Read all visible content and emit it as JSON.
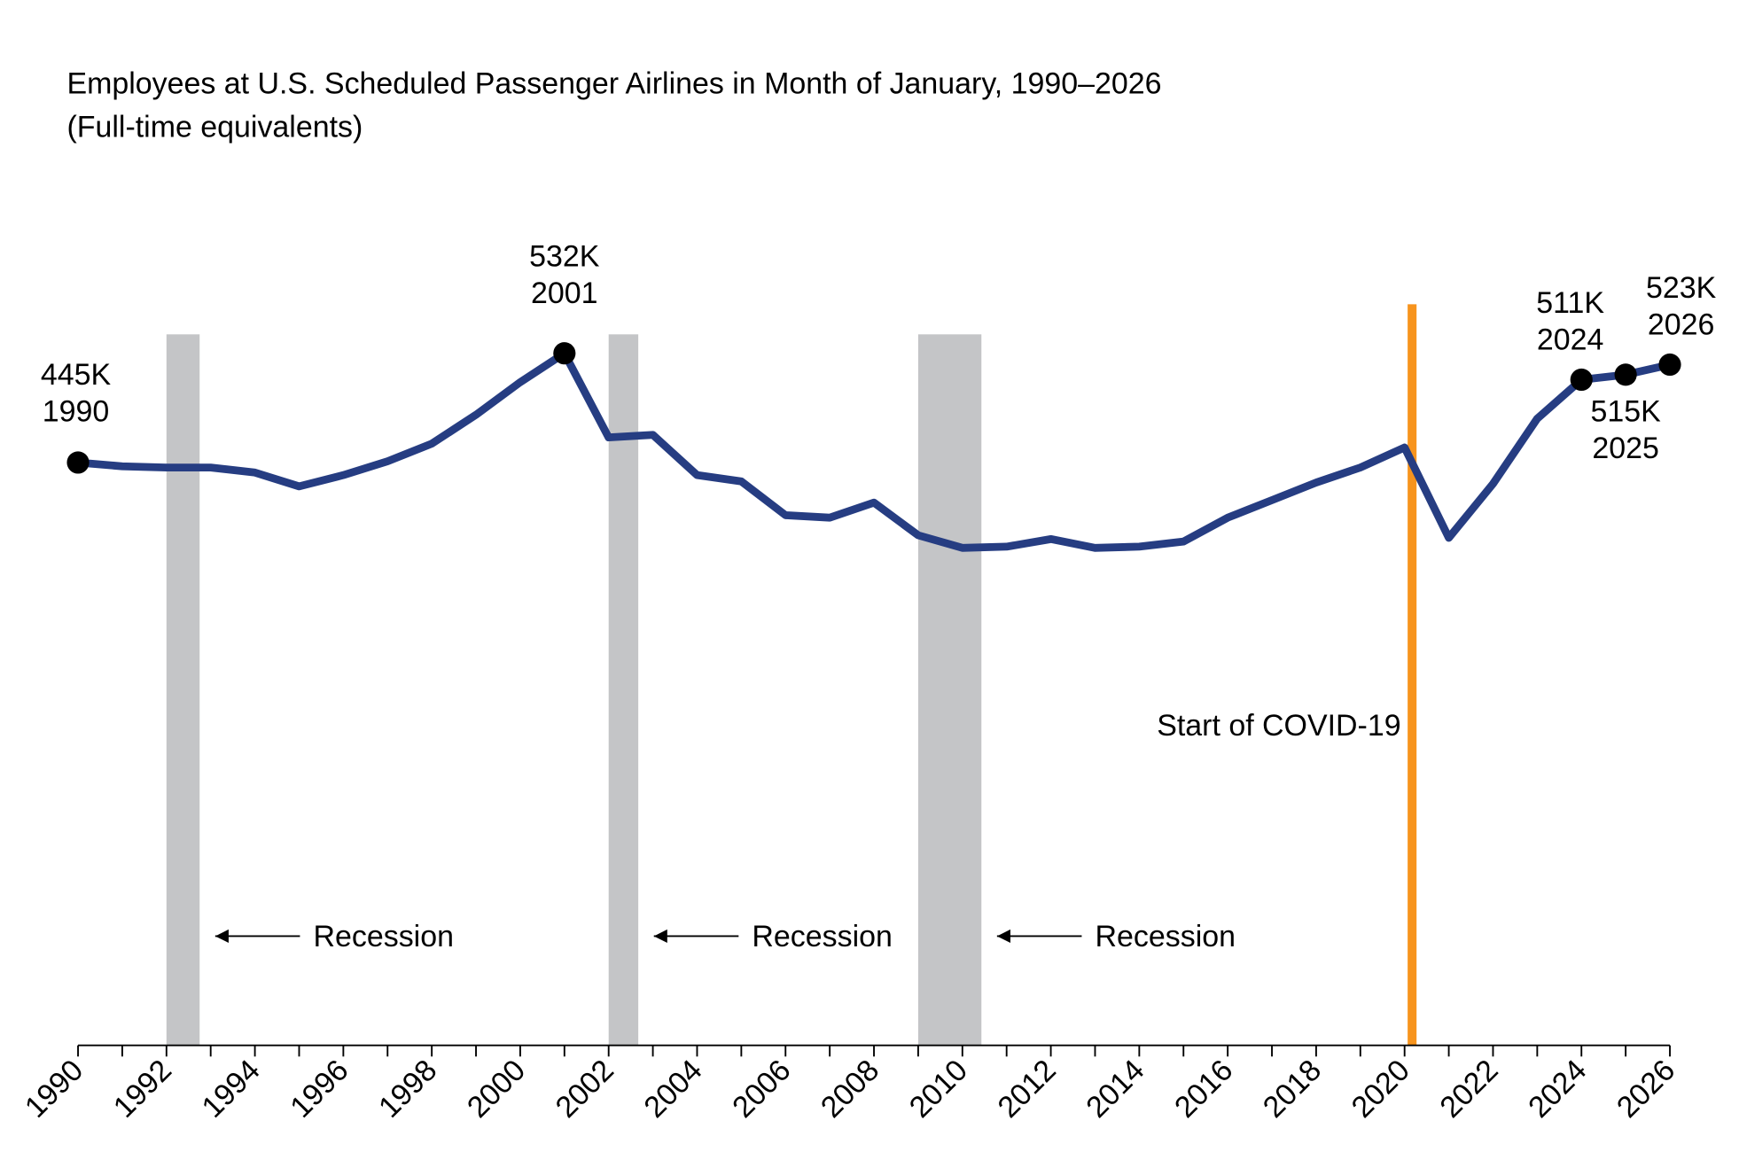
{
  "chart_data": {
    "type": "line",
    "title": "Employees at U.S. Scheduled Passenger Airlines in Month of January, 1990–2026",
    "subtitle": "(Full-time equivalents)",
    "xlabel": "",
    "ylabel": "",
    "xlim": [
      1990,
      2026
    ],
    "x_ticks": [
      "1990",
      "1992",
      "1994",
      "1996",
      "1998",
      "2000",
      "2002",
      "2004",
      "2006",
      "2008",
      "2010",
      "2012",
      "2014",
      "2016",
      "2018",
      "2020",
      "2022",
      "2024",
      "2026"
    ],
    "grid": false,
    "series_color": "#263d82",
    "x": [
      1990,
      1991,
      1992,
      1993,
      1994,
      1995,
      1996,
      1997,
      1998,
      1999,
      2000,
      2001,
      2002,
      2003,
      2004,
      2005,
      2006,
      2007,
      2008,
      2009,
      2010,
      2011,
      2012,
      2013,
      2014,
      2015,
      2016,
      2017,
      2018,
      2019,
      2020,
      2021,
      2022,
      2023,
      2024,
      2025,
      2026
    ],
    "values": [
      445,
      442,
      441,
      441,
      437,
      426,
      435,
      446,
      460,
      483,
      509,
      532,
      465,
      467,
      435,
      430,
      403,
      401,
      413,
      387,
      377,
      378,
      384,
      377,
      378,
      382,
      401,
      415,
      429,
      441,
      457,
      385,
      428,
      480,
      511,
      515,
      523
    ],
    "units": "thousands",
    "highlighted_points": [
      {
        "x": 1990,
        "value_label": "445K",
        "year_label": "1990"
      },
      {
        "x": 2001,
        "value_label": "532K",
        "year_label": "2001"
      },
      {
        "x": 2024,
        "value_label": "511K",
        "year_label": "2024"
      },
      {
        "x": 2025,
        "value_label": "515K",
        "year_label": "2025"
      },
      {
        "x": 2026,
        "value_label": "523K",
        "year_label": "2026"
      }
    ],
    "recessions": [
      {
        "start": 1992.0,
        "end": 1992.75,
        "label": "Recession"
      },
      {
        "start": 2002.0,
        "end": 2002.67,
        "label": "Recession"
      },
      {
        "start": 2009.0,
        "end": 2010.43,
        "label": "Recession"
      }
    ],
    "recession_color": "#c4c5c7",
    "event_line": {
      "x": 2020.17,
      "label": "Start of COVID-19",
      "color": "#f7941d"
    }
  }
}
